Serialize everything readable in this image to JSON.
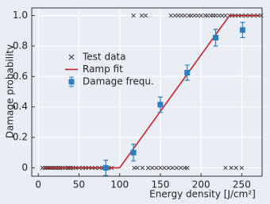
{
  "chart_data": {
    "type": "scatter",
    "xlabel": "Energy density [J/cm²]",
    "ylabel": "Damage probability",
    "xlim": [
      -8,
      275
    ],
    "ylim": [
      -0.055,
      1.05
    ],
    "xticks": [
      0,
      50,
      100,
      150,
      200,
      250
    ],
    "yticks": [
      0,
      0.2,
      0.4,
      0.6,
      0.8,
      {
        "value": 1,
        "label": "1.0"
      }
    ],
    "grid": true,
    "legend": "upper left",
    "series": [
      {
        "name": "Test data",
        "type": "scatter",
        "color": "#333333",
        "x": [
          5,
          8,
          10,
          12,
          14,
          16,
          18,
          20,
          22,
          25,
          27,
          30,
          33,
          36,
          38,
          40,
          43,
          46,
          50,
          55,
          58,
          62,
          66,
          70,
          75,
          80,
          86,
          90,
          118,
          122,
          128,
          135,
          140,
          145,
          150,
          155,
          160,
          165,
          170,
          175,
          180,
          183,
          230,
          237,
          243,
          250,
          117,
          127,
          132,
          163,
          168,
          172,
          176,
          180,
          185,
          188,
          192,
          196,
          200,
          205,
          208,
          212,
          215,
          218,
          222,
          226,
          230,
          235,
          238,
          242,
          246,
          250,
          255,
          260,
          265,
          270,
          274
        ],
        "y": [
          0,
          0,
          0,
          0,
          0,
          0,
          0,
          0,
          0,
          0,
          0,
          0,
          0,
          0,
          0,
          0,
          0,
          0,
          0,
          0,
          0,
          0,
          0,
          0,
          0,
          0,
          0,
          0,
          0,
          0,
          0,
          0,
          0,
          0,
          0,
          0,
          0,
          0,
          0,
          0,
          0,
          0,
          0,
          0,
          0,
          0,
          1,
          1,
          1,
          1,
          1,
          1,
          1,
          1,
          1,
          1,
          1,
          1,
          1,
          1,
          1,
          1,
          1,
          1,
          1,
          1,
          1,
          1,
          1,
          1,
          1,
          1,
          1,
          1,
          1,
          1,
          1
        ]
      },
      {
        "name": "Ramp fit",
        "type": "line",
        "color": "#c8202c",
        "x": [
          7,
          100,
          235,
          272
        ],
        "y": [
          0,
          0,
          1,
          1
        ]
      },
      {
        "name": "Damage frequ.",
        "type": "errorbar",
        "color": "#2b7fc1",
        "x": [
          83,
          117,
          150,
          183,
          218,
          251
        ],
        "y": [
          0,
          0.1,
          0.415,
          0.625,
          0.855,
          0.905
        ],
        "errors": [
          0.05,
          0.055,
          0.05,
          0.05,
          0.055,
          0.05
        ]
      }
    ]
  }
}
